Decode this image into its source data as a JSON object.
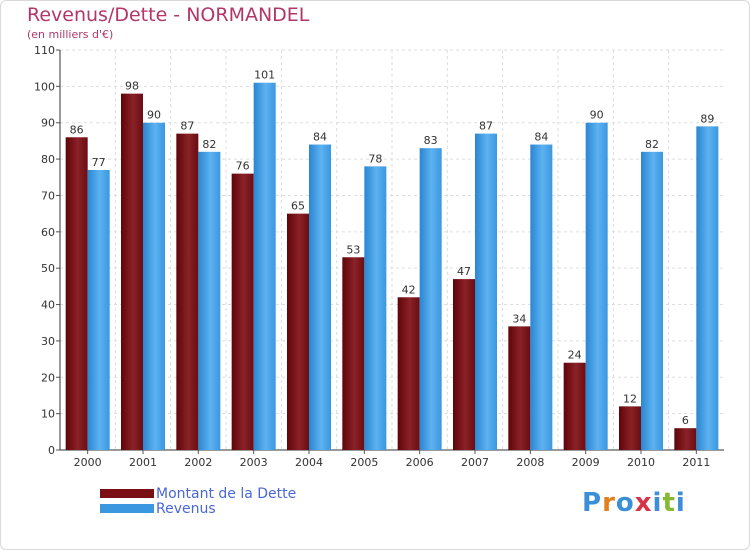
{
  "title": "Revenus/Dette - NORMANDEL",
  "subtitle": "(en milliers d'€)",
  "logo": {
    "text": "Proxiti",
    "letters": [
      "P",
      "r",
      "o",
      "x",
      "i",
      "t",
      "i"
    ],
    "colors": [
      "#3b8fd6",
      "#e2801f",
      "#3b8fd6",
      "#d6344a",
      "#3b8fd6",
      "#86b833",
      "#3b8fd6"
    ]
  },
  "colors": {
    "series1": "#7a1015",
    "series2": "#3a97e0",
    "title": "#b2366a",
    "legend_text": "#4a67d6"
  },
  "legend": [
    {
      "label": "Montant de la Dette",
      "color": "#7a1015"
    },
    {
      "label": "Revenus",
      "color": "#3a97e0"
    }
  ],
  "chart_data": {
    "type": "bar",
    "title": "Revenus/Dette - NORMANDEL",
    "subtitle": "(en milliers d'€)",
    "categories": [
      "2000",
      "2001",
      "2002",
      "2003",
      "2004",
      "2005",
      "2006",
      "2007",
      "2008",
      "2009",
      "2010",
      "2011"
    ],
    "series": [
      {
        "name": "Montant de la Dette",
        "values": [
          86,
          98,
          87,
          76,
          65,
          53,
          42,
          47,
          34,
          24,
          12,
          6
        ]
      },
      {
        "name": "Revenus",
        "values": [
          77,
          90,
          82,
          101,
          84,
          78,
          83,
          87,
          84,
          90,
          82,
          89
        ]
      }
    ],
    "ylim": [
      0,
      110
    ],
    "yticks": [
      0,
      10,
      20,
      30,
      40,
      50,
      60,
      70,
      80,
      90,
      100,
      110
    ],
    "grid": true,
    "legend_position": "bottom-left"
  }
}
